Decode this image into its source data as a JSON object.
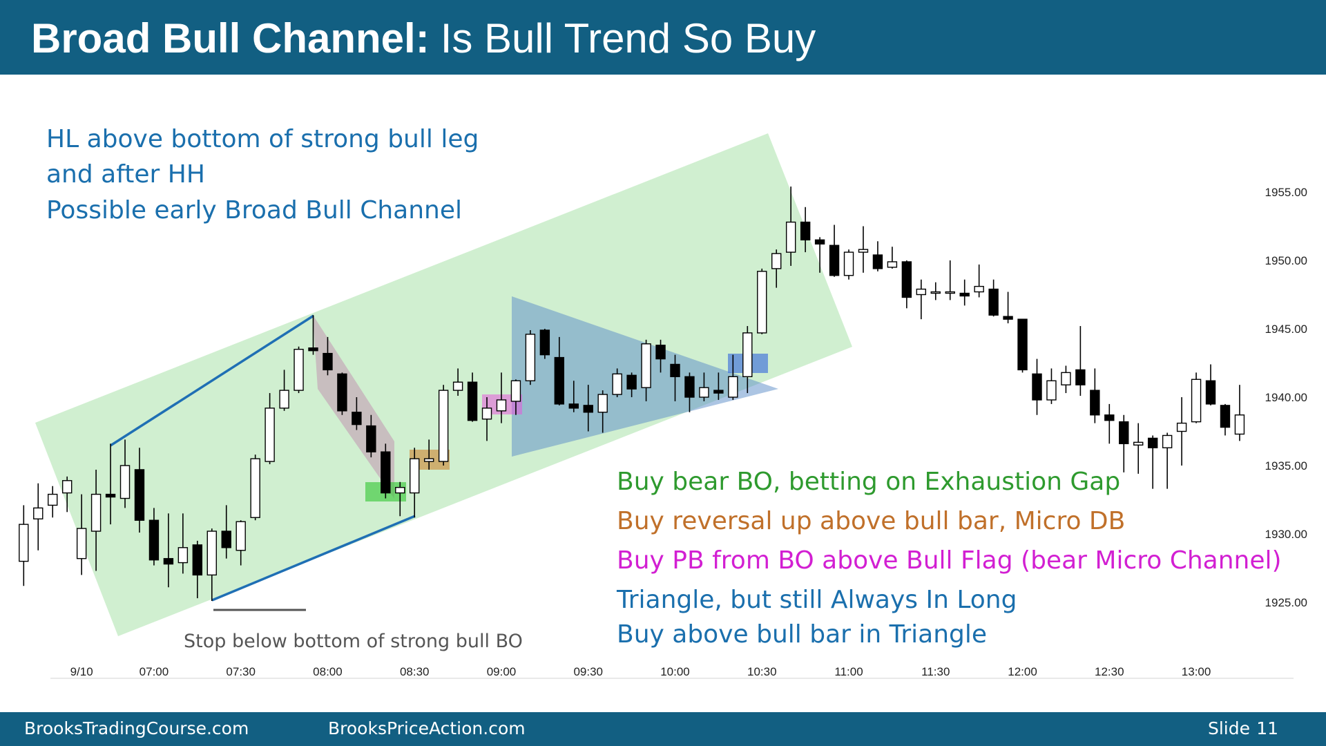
{
  "header": {
    "title_bold": "Broad Bull Channel:",
    "title_rest": "Is Bull Trend So Buy"
  },
  "footer": {
    "left": "BrooksTradingCourse.com",
    "center": "BrooksPriceAction.com",
    "slide_label": "Slide",
    "slide_number": "11"
  },
  "annotations": {
    "top_left": [
      "HL above bottom of strong bull leg",
      "and after HH",
      "Possible early Broad Bull Channel"
    ],
    "stop_note": "Stop below bottom of strong bull BO",
    "notes": [
      {
        "text": "Buy bear BO, betting on Exhaustion Gap",
        "color": "#2e9a2e"
      },
      {
        "text": "Buy reversal up above bull bar, Micro DB",
        "color": "#c0702a"
      },
      {
        "text": "Buy PB from BO above Bull Flag (bear Micro Channel)",
        "color": "#d21fd2"
      },
      {
        "text": "Triangle, but still Always In Long",
        "color": "#1a6fad"
      },
      {
        "text": "Buy above bull bar in Triangle",
        "color": "#1a6fad"
      }
    ]
  },
  "chart_data": {
    "type": "candlestick",
    "up_color": "#ffffff",
    "down_color": "#000000",
    "categories": [
      null,
      null,
      null,
      null,
      "9/10",
      null,
      null,
      null,
      null,
      "07:00",
      null,
      null,
      null,
      null,
      null,
      "07:30",
      null,
      null,
      null,
      null,
      null,
      "08:00",
      null,
      null,
      null,
      null,
      null,
      "08:30",
      null,
      null,
      null,
      null,
      null,
      "09:00",
      null,
      null,
      null,
      null,
      null,
      "09:30",
      null,
      null,
      null,
      null,
      null,
      "10:00",
      null,
      null,
      null,
      null,
      null,
      "10:30",
      null,
      null,
      null,
      null,
      null,
      "11:00",
      null,
      null,
      null,
      null,
      null,
      "11:30",
      null,
      null,
      null,
      null,
      null,
      "12:00",
      null,
      null,
      null,
      null,
      null,
      "12:30",
      null,
      null,
      null,
      null,
      null,
      "13:00",
      null,
      null,
      null
    ],
    "open": [
      1928.0,
      1931.1,
      1932.1,
      1933.0,
      1928.2,
      1930.2,
      1932.9,
      1932.6,
      1934.7,
      1931.0,
      1928.2,
      1927.9,
      1929.2,
      1927.0,
      1930.2,
      1928.8,
      1931.2,
      1935.3,
      1939.2,
      1940.5,
      1943.6,
      1943.2,
      1941.7,
      1938.9,
      1937.9,
      1936.0,
      1933.0,
      1933.0,
      1935.3,
      1935.3,
      1940.5,
      1941.1,
      1938.4,
      1939.0,
      1939.7,
      1941.2,
      1944.9,
      1942.9,
      1939.5,
      1939.4,
      1938.9,
      1940.2,
      1941.6,
      1940.7,
      1943.8,
      1942.4,
      1941.5,
      1940.0,
      1940.5,
      1940.0,
      1941.5,
      1944.7,
      1949.4,
      1950.6,
      1952.8,
      1951.5,
      1951.1,
      1948.9,
      1950.6,
      1950.4,
      1949.5,
      1949.9,
      1947.5,
      1947.6,
      1947.6,
      1947.6,
      1947.7,
      1947.9,
      1945.9,
      1945.7,
      1941.7,
      1939.8,
      1940.9,
      1942.0,
      1940.5,
      1938.7,
      1938.2,
      1936.5,
      1937.0,
      1936.3,
      1937.5,
      1938.2,
      1941.2,
      1939.4,
      1937.3
    ],
    "high": [
      1932.1,
      1933.7,
      1933.5,
      1934.2,
      1932.9,
      1934.7,
      1936.6,
      1936.9,
      1936.3,
      1931.9,
      1931.5,
      1931.5,
      1929.5,
      1930.4,
      1932.1,
      1931.0,
      1935.8,
      1940.3,
      1942.0,
      1943.7,
      1946.0,
      1944.4,
      1941.8,
      1940.0,
      1938.7,
      1936.6,
      1933.8,
      1936.3,
      1936.9,
      1940.9,
      1942.1,
      1941.8,
      1940.0,
      1941.8,
      1941.3,
      1944.9,
      1945.0,
      1944.4,
      1941.2,
      1940.9,
      1940.5,
      1942.1,
      1941.8,
      1944.2,
      1944.2,
      1943.1,
      1941.8,
      1941.8,
      1941.8,
      1943.1,
      1945.2,
      1949.4,
      1950.8,
      1955.4,
      1953.9,
      1951.7,
      1952.6,
      1950.8,
      1952.5,
      1951.4,
      1951.0,
      1950.0,
      1948.6,
      1948.4,
      1950.0,
      1948.6,
      1949.7,
      1948.6,
      1947.7,
      1945.7,
      1942.8,
      1942.1,
      1942.3,
      1945.2,
      1942.1,
      1939.5,
      1938.7,
      1938.1,
      1937.2,
      1937.4,
      1940.0,
      1941.8,
      1942.4,
      1939.5,
      1940.9
    ],
    "low": [
      1926.2,
      1928.8,
      1931.2,
      1931.6,
      1927.0,
      1927.3,
      1930.7,
      1931.9,
      1930.1,
      1927.7,
      1926.1,
      1927.1,
      1925.3,
      1925.1,
      1928.2,
      1927.7,
      1931.0,
      1935.1,
      1939.0,
      1940.3,
      1943.1,
      1941.6,
      1938.7,
      1937.6,
      1935.6,
      1932.6,
      1931.3,
      1931.2,
      1934.7,
      1935.0,
      1940.1,
      1938.2,
      1936.8,
      1938.1,
      1938.7,
      1940.9,
      1942.8,
      1939.4,
      1938.9,
      1937.5,
      1937.4,
      1940.0,
      1940.0,
      1939.7,
      1941.8,
      1939.7,
      1938.9,
      1939.7,
      1939.8,
      1939.8,
      1940.3,
      1944.6,
      1948.0,
      1949.6,
      1950.6,
      1949.1,
      1948.8,
      1948.6,
      1949.1,
      1949.2,
      1949.4,
      1946.5,
      1945.7,
      1947.1,
      1947.1,
      1946.7,
      1947.3,
      1945.9,
      1945.4,
      1941.8,
      1938.7,
      1939.5,
      1940.3,
      1940.1,
      1938.1,
      1936.6,
      1934.5,
      1934.4,
      1933.3,
      1933.3,
      1935.0,
      1938.1,
      1939.4,
      1937.2,
      1936.8
    ],
    "close": [
      1930.7,
      1931.9,
      1932.9,
      1933.9,
      1930.4,
      1932.9,
      1932.7,
      1935.0,
      1931.0,
      1928.1,
      1927.8,
      1929.0,
      1927.0,
      1930.2,
      1929.0,
      1930.9,
      1935.5,
      1939.2,
      1940.5,
      1943.5,
      1943.4,
      1942.0,
      1939.0,
      1938.0,
      1936.0,
      1933.0,
      1933.4,
      1935.5,
      1935.5,
      1940.5,
      1941.1,
      1938.3,
      1939.2,
      1939.8,
      1941.2,
      1944.6,
      1943.1,
      1939.5,
      1939.2,
      1938.9,
      1940.2,
      1941.7,
      1940.6,
      1943.9,
      1942.8,
      1941.5,
      1940.0,
      1940.7,
      1940.3,
      1941.5,
      1944.7,
      1949.2,
      1950.5,
      1952.8,
      1951.5,
      1951.2,
      1948.9,
      1950.6,
      1950.8,
      1949.4,
      1949.9,
      1947.3,
      1947.9,
      1947.7,
      1947.7,
      1947.4,
      1948.1,
      1946.0,
      1945.7,
      1942.0,
      1939.8,
      1941.2,
      1941.8,
      1940.9,
      1938.7,
      1938.3,
      1936.6,
      1936.7,
      1936.3,
      1937.2,
      1938.1,
      1941.3,
      1939.5,
      1937.8,
      1938.7
    ],
    "ylim": [
      1920,
      1962
    ],
    "yticks": [
      {
        "value": 1925,
        "label": "1925.00"
      },
      {
        "value": 1930,
        "label": "1930.00"
      },
      {
        "value": 1935,
        "label": "1935.00"
      },
      {
        "value": 1940,
        "label": "1940.00"
      },
      {
        "value": 1945,
        "label": "1945.00"
      },
      {
        "value": 1950,
        "label": "1950.00"
      },
      {
        "value": 1955,
        "label": "1955.00"
      }
    ]
  }
}
